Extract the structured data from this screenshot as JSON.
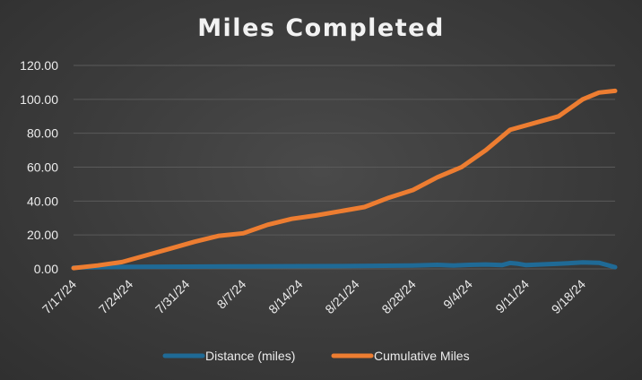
{
  "chart_data": {
    "type": "line",
    "title": "Miles Completed",
    "xlabel": "",
    "ylabel": "",
    "ylim": [
      0,
      120
    ],
    "yticks": [
      "0.00",
      "20.00",
      "40.00",
      "60.00",
      "80.00",
      "100.00",
      "120.00"
    ],
    "x_start": "7/17/24",
    "x_end": "9/22/24",
    "xticks": [
      "7/17/24",
      "7/24/24",
      "7/31/24",
      "8/7/24",
      "8/14/24",
      "8/21/24",
      "8/28/24",
      "9/4/24",
      "9/11/24",
      "9/18/24"
    ],
    "grid": true,
    "legend": "bottom",
    "series": [
      {
        "name": "Distance (miles)",
        "color": "#1f6a96",
        "x": [
          "7/17/24",
          "7/24/24",
          "7/31/24",
          "8/7/24",
          "8/14/24",
          "8/21/24",
          "8/28/24",
          "8/31/24",
          "9/2/24",
          "9/4/24",
          "9/6/24",
          "9/8/24",
          "9/9/24",
          "9/10/24",
          "9/11/24",
          "9/15/24",
          "9/18/24",
          "9/20/24",
          "9/22/24"
        ],
        "values": [
          0.8,
          1.2,
          1.3,
          1.5,
          1.6,
          1.7,
          2.0,
          2.4,
          2.0,
          2.4,
          2.6,
          2.2,
          3.5,
          3.0,
          2.2,
          3.0,
          3.8,
          3.6,
          1.0
        ]
      },
      {
        "name": "Cumulative Miles",
        "color": "#ed7d31",
        "x": [
          "7/17/24",
          "7/20/24",
          "7/23/24",
          "7/26/24",
          "7/29/24",
          "8/1/24",
          "8/4/24",
          "8/7/24",
          "8/10/24",
          "8/13/24",
          "8/16/24",
          "8/19/24",
          "8/22/24",
          "8/25/24",
          "8/28/24",
          "8/31/24",
          "9/3/24",
          "9/6/24",
          "9/9/24",
          "9/12/24",
          "9/15/24",
          "9/18/24",
          "9/20/24",
          "9/22/24"
        ],
        "values": [
          0.5,
          2.0,
          4.0,
          8.0,
          12.0,
          16.0,
          19.5,
          21.0,
          26.0,
          29.5,
          31.5,
          34.0,
          36.5,
          42.0,
          46.5,
          54.0,
          60.0,
          70.0,
          82.0,
          86.0,
          90.0,
          100.0,
          104.0,
          105.0
        ]
      }
    ]
  }
}
